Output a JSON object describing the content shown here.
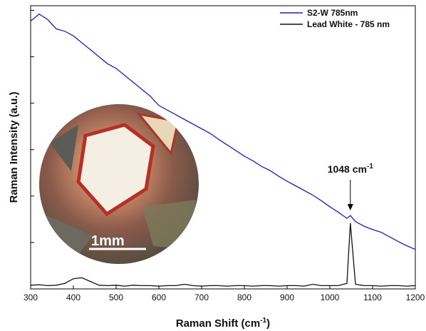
{
  "chart_data": {
    "type": "line",
    "ylabel": "Raman Intensity (a.u.)",
    "xlabel": {
      "text": "Raman Shift (cm",
      "superscript": "-1",
      "suffix": ")"
    },
    "annotation": {
      "text": "1048 cm",
      "superscript": "-1",
      "x": 1048
    },
    "inset_label": "1mm",
    "x": [
      300,
      320,
      340,
      360,
      380,
      400,
      420,
      440,
      460,
      480,
      500,
      520,
      540,
      560,
      580,
      600,
      620,
      640,
      660,
      680,
      700,
      720,
      740,
      760,
      780,
      800,
      820,
      840,
      860,
      880,
      900,
      920,
      940,
      960,
      980,
      1000,
      1020,
      1040,
      1048,
      1060,
      1080,
      1100,
      1120,
      1140,
      1160,
      1180,
      1200
    ],
    "series": [
      {
        "name": "S2-W 785nm",
        "color": "#1f1fbf",
        "values": [
          5.77,
          5.92,
          5.8,
          5.6,
          5.55,
          5.45,
          5.3,
          5.15,
          5.0,
          4.85,
          4.75,
          4.6,
          4.45,
          4.3,
          4.15,
          3.95,
          3.85,
          3.75,
          3.65,
          3.55,
          3.45,
          3.35,
          3.22,
          3.1,
          2.98,
          2.86,
          2.76,
          2.64,
          2.55,
          2.43,
          2.32,
          2.22,
          2.12,
          2.02,
          1.9,
          1.77,
          1.65,
          1.52,
          1.58,
          1.45,
          1.35,
          1.28,
          1.22,
          1.12,
          1.02,
          0.93,
          0.85
        ]
      },
      {
        "name": "Lead White - 785 nm",
        "color": "#111111",
        "values": [
          0.08,
          0.09,
          0.07,
          0.08,
          0.12,
          0.22,
          0.24,
          0.16,
          0.08,
          0.07,
          0.08,
          0.06,
          0.08,
          0.07,
          0.07,
          0.06,
          0.07,
          0.07,
          0.1,
          0.07,
          0.06,
          0.07,
          0.07,
          0.06,
          0.07,
          0.07,
          0.06,
          0.07,
          0.07,
          0.06,
          0.07,
          0.07,
          0.06,
          0.1,
          0.07,
          0.07,
          0.07,
          0.12,
          1.42,
          0.1,
          0.07,
          0.07,
          0.06,
          0.07,
          0.07,
          0.06,
          0.07
        ]
      }
    ],
    "xlim": [
      300,
      1200
    ],
    "xticks": [
      300,
      400,
      500,
      600,
      700,
      800,
      900,
      1000,
      1100,
      1200
    ],
    "ylim": [
      0,
      6.1
    ],
    "yticks": [
      1,
      2,
      3,
      4,
      5,
      6
    ],
    "legend": "top-right"
  }
}
